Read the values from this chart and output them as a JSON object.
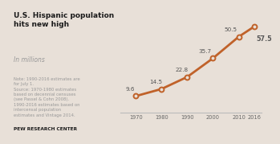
{
  "title": "U.S. Hispanic population\nhits new high",
  "subtitle": "In millions",
  "note": "Note: 1990-2016 estimates are\nfor July 1.\nSource: 1970-1980 estimates\nbased on decennial censuses\n(see Passel & Cohn 2008).\n1990-2016 estimates based on\nintercensal population\nestimates and Vintage 2014.",
  "footer": "PEW RESEARCH CENTER",
  "years": [
    1970,
    1980,
    1990,
    2000,
    2010,
    2016
  ],
  "values": [
    9.6,
    14.5,
    22.8,
    35.7,
    50.5,
    57.5
  ],
  "line_color": "#c0622a",
  "marker_face_color": "#e8e0d8",
  "marker_edge_color": "#c0622a",
  "bg_color": "#e8e0d8",
  "text_color": "#666666",
  "title_color": "#1a1a1a",
  "label_color": "#555555",
  "axis_color": "#bbbbbb"
}
